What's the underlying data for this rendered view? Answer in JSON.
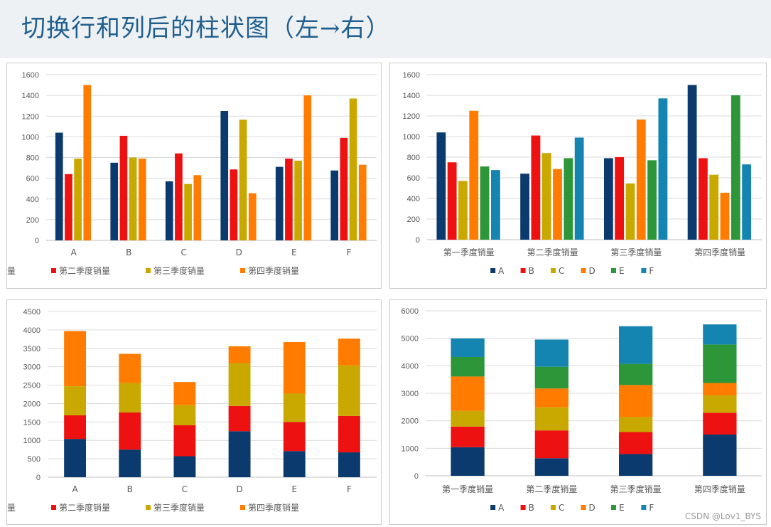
{
  "page": {
    "title": "切换行和列后的柱状图（左→右）",
    "watermark": "CSDN @Lov1_BYS"
  },
  "colors": {
    "series1": "#0a3a6e",
    "series2": "#ee1111",
    "series3": "#c9a800",
    "series4": "#ff7c00",
    "series5": "#2c9639",
    "series6": "#1484b0"
  },
  "chart_data": [
    {
      "type": "bar",
      "mode": "grouped",
      "categories": [
        "A",
        "B",
        "C",
        "D",
        "E",
        "F"
      ],
      "series": [
        {
          "name": "第一季度销量",
          "values": [
            1040,
            750,
            570,
            1250,
            710,
            675
          ]
        },
        {
          "name": "第二季度销量",
          "values": [
            640,
            1010,
            840,
            685,
            790,
            990
          ]
        },
        {
          "name": "第三季度销量",
          "values": [
            790,
            800,
            545,
            1165,
            770,
            1370
          ]
        },
        {
          "name": "第四季度销量",
          "values": [
            1500,
            790,
            630,
            455,
            1400,
            730
          ]
        }
      ],
      "ylim": [
        0,
        1600
      ],
      "yticks": [
        0,
        200,
        400,
        600,
        800,
        1000,
        1200,
        1400,
        1600
      ],
      "legend": "bottom",
      "grid": true
    },
    {
      "type": "bar",
      "mode": "grouped",
      "categories": [
        "第一季度销量",
        "第二季度销量",
        "第三季度销量",
        "第四季度销量"
      ],
      "series": [
        {
          "name": "A",
          "values": [
            1040,
            640,
            790,
            1500
          ]
        },
        {
          "name": "B",
          "values": [
            750,
            1010,
            800,
            790
          ]
        },
        {
          "name": "C",
          "values": [
            570,
            840,
            545,
            630
          ]
        },
        {
          "name": "D",
          "values": [
            1250,
            685,
            1165,
            455
          ]
        },
        {
          "name": "E",
          "values": [
            710,
            790,
            770,
            1400
          ]
        },
        {
          "name": "F",
          "values": [
            675,
            990,
            1370,
            730
          ]
        }
      ],
      "ylim": [
        0,
        1600
      ],
      "yticks": [
        0,
        200,
        400,
        600,
        800,
        1000,
        1200,
        1400,
        1600
      ],
      "legend": "bottom",
      "grid": true
    },
    {
      "type": "bar",
      "mode": "stacked",
      "categories": [
        "A",
        "B",
        "C",
        "D",
        "E",
        "F"
      ],
      "series": [
        {
          "name": "第一季度销量",
          "values": [
            1040,
            750,
            570,
            1250,
            710,
            675
          ]
        },
        {
          "name": "第二季度销量",
          "values": [
            640,
            1010,
            840,
            685,
            790,
            990
          ]
        },
        {
          "name": "第三季度销量",
          "values": [
            790,
            800,
            545,
            1165,
            770,
            1370
          ]
        },
        {
          "name": "第四季度销量",
          "values": [
            1500,
            790,
            630,
            455,
            1400,
            730
          ]
        }
      ],
      "ylim": [
        0,
        4500
      ],
      "yticks": [
        0,
        500,
        1000,
        1500,
        2000,
        2500,
        3000,
        3500,
        4000,
        4500
      ],
      "legend": "bottom",
      "grid": true
    },
    {
      "type": "bar",
      "mode": "stacked",
      "categories": [
        "第一季度销量",
        "第二季度销量",
        "第三季度销量",
        "第四季度销量"
      ],
      "series": [
        {
          "name": "A",
          "values": [
            1040,
            640,
            790,
            1500
          ]
        },
        {
          "name": "B",
          "values": [
            750,
            1010,
            800,
            790
          ]
        },
        {
          "name": "C",
          "values": [
            570,
            840,
            545,
            630
          ]
        },
        {
          "name": "D",
          "values": [
            1250,
            685,
            1165,
            455
          ]
        },
        {
          "name": "E",
          "values": [
            710,
            790,
            770,
            1400
          ]
        },
        {
          "name": "F",
          "values": [
            675,
            990,
            1370,
            730
          ]
        }
      ],
      "ylim": [
        0,
        6000
      ],
      "yticks": [
        0,
        1000,
        2000,
        3000,
        4000,
        5000,
        6000
      ],
      "legend": "bottom",
      "grid": true
    }
  ]
}
